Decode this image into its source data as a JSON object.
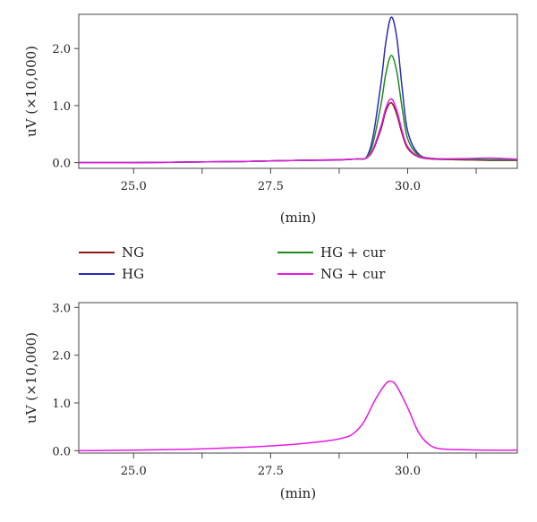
{
  "chart_data": [
    {
      "type": "line",
      "xlabel": "(min)",
      "ylabel": "uV (×10,000)",
      "xlim": [
        24.0,
        32.0
      ],
      "ylim": [
        -0.1,
        2.6
      ],
      "xticks": [
        {
          "value": 25.0,
          "label": "25.0"
        },
        {
          "value": 27.5,
          "label": "27.5"
        },
        {
          "value": 30.0,
          "label": "30.0"
        }
      ],
      "xticks_unlabeled": [
        26.25,
        28.75,
        31.25
      ],
      "yticks": [
        {
          "value": 0.0,
          "label": "0.0"
        },
        {
          "value": 1.0,
          "label": "1.0"
        },
        {
          "value": 2.0,
          "label": "2.0"
        }
      ],
      "series": [
        {
          "name": "NG",
          "color": "#8B1A1A",
          "x": [
            24.0,
            25.0,
            26.0,
            27.0,
            28.0,
            29.0,
            29.3,
            29.5,
            29.6,
            29.7,
            29.8,
            29.9,
            30.0,
            30.2,
            30.5,
            31.0,
            31.5,
            32.0
          ],
          "y": [
            0.0,
            0.0,
            0.01,
            0.02,
            0.04,
            0.06,
            0.12,
            0.55,
            0.9,
            1.05,
            0.85,
            0.5,
            0.25,
            0.1,
            0.06,
            0.05,
            0.04,
            0.04
          ]
        },
        {
          "name": "HG",
          "color": "#2B2BB8",
          "x": [
            24.0,
            25.0,
            26.0,
            27.0,
            28.0,
            29.0,
            29.3,
            29.5,
            29.6,
            29.7,
            29.8,
            29.9,
            30.0,
            30.2,
            30.5,
            31.0,
            31.5,
            32.0
          ],
          "y": [
            0.0,
            0.0,
            0.01,
            0.02,
            0.04,
            0.06,
            0.2,
            1.3,
            2.1,
            2.55,
            2.2,
            1.3,
            0.55,
            0.15,
            0.07,
            0.06,
            0.05,
            0.05
          ]
        },
        {
          "name": "HG + cur",
          "color": "#1E8B1E",
          "x": [
            24.0,
            25.0,
            26.0,
            27.0,
            28.0,
            29.0,
            29.3,
            29.5,
            29.6,
            29.7,
            29.8,
            29.9,
            30.0,
            30.2,
            30.5,
            31.0,
            31.5,
            32.0
          ],
          "y": [
            0.0,
            0.0,
            0.01,
            0.02,
            0.04,
            0.06,
            0.16,
            0.95,
            1.55,
            1.88,
            1.6,
            0.95,
            0.42,
            0.13,
            0.07,
            0.06,
            0.05,
            0.05
          ]
        },
        {
          "name": "NG + cur",
          "color": "#E619E6",
          "x": [
            24.0,
            25.0,
            26.0,
            27.0,
            28.0,
            29.0,
            29.3,
            29.5,
            29.6,
            29.7,
            29.8,
            29.9,
            30.0,
            30.2,
            30.5,
            31.0,
            31.5,
            32.0
          ],
          "y": [
            0.0,
            0.0,
            0.01,
            0.02,
            0.04,
            0.06,
            0.13,
            0.6,
            0.95,
            1.12,
            0.92,
            0.55,
            0.28,
            0.11,
            0.07,
            0.07,
            0.08,
            0.06
          ]
        }
      ]
    },
    {
      "type": "line",
      "xlabel": "(min)",
      "ylabel": "uV (×10,000)",
      "xlim": [
        24.0,
        32.0
      ],
      "ylim": [
        -0.05,
        3.1
      ],
      "xticks": [
        {
          "value": 25.0,
          "label": "25.0"
        },
        {
          "value": 27.5,
          "label": "27.5"
        },
        {
          "value": 30.0,
          "label": "30.0"
        }
      ],
      "xticks_unlabeled": [
        26.25,
        28.75,
        31.25
      ],
      "yticks": [
        {
          "value": 0.0,
          "label": "0.0"
        },
        {
          "value": 1.0,
          "label": "1.0"
        },
        {
          "value": 2.0,
          "label": "2.0"
        },
        {
          "value": 3.0,
          "label": "3.0"
        }
      ],
      "series": [
        {
          "name": "",
          "color": "#E619E6",
          "x": [
            24.0,
            25.0,
            26.0,
            27.0,
            27.5,
            28.0,
            28.5,
            28.8,
            29.0,
            29.2,
            29.4,
            29.6,
            29.7,
            29.8,
            30.0,
            30.2,
            30.4,
            30.6,
            31.0,
            31.5,
            32.0
          ],
          "y": [
            0.0,
            0.01,
            0.03,
            0.07,
            0.1,
            0.14,
            0.2,
            0.26,
            0.35,
            0.6,
            1.05,
            1.4,
            1.45,
            1.35,
            0.9,
            0.38,
            0.12,
            0.04,
            0.02,
            0.01,
            0.01
          ]
        }
      ]
    }
  ],
  "legend": [
    {
      "label": "NG",
      "color": "#8B1A1A"
    },
    {
      "label": "HG",
      "color": "#2B2BB8"
    },
    {
      "label": "HG + cur",
      "color": "#1E8B1E"
    },
    {
      "label": "NG + cur",
      "color": "#E619E6"
    }
  ]
}
